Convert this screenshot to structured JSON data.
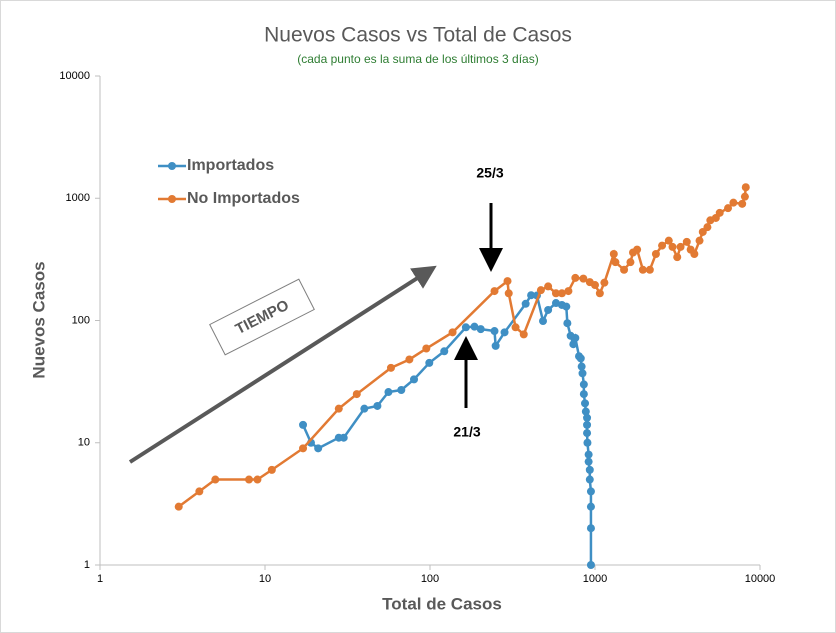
{
  "chart_data": {
    "type": "line",
    "title": "Nuevos Casos vs Total de Casos",
    "subtitle": "(cada punto es la suma de los últimos 3 días)",
    "xlabel": "Total de Casos",
    "ylabel": "Nuevos Casos",
    "xscale": "log",
    "yscale": "log",
    "xlim": [
      1,
      10000
    ],
    "ylim": [
      1,
      10000
    ],
    "xticks": [
      1,
      10,
      100,
      1000,
      10000
    ],
    "yticks": [
      1,
      10,
      100,
      1000,
      10000
    ],
    "legend": "upper left",
    "annotations": [
      "25/3",
      "21/3",
      "TIEMPO"
    ],
    "series": [
      {
        "name": "Importados",
        "color": "#3f8fc4",
        "x": [
          17,
          19,
          21,
          28,
          30,
          40,
          48,
          56,
          67,
          80,
          99,
          122,
          165,
          186,
          203,
          246,
          250,
          283,
          380,
          410,
          445,
          484,
          520,
          580,
          630,
          670,
          680,
          712,
          739,
          760,
          800,
          820,
          830,
          840,
          856,
          856,
          870,
          880,
          895,
          895,
          895,
          900,
          915,
          915,
          930,
          930,
          945,
          945,
          945,
          945
        ],
        "values": [
          14,
          10,
          9,
          11,
          11,
          19,
          20,
          26,
          27,
          33,
          45,
          56,
          88,
          89,
          85,
          82,
          62,
          80,
          137,
          161,
          160,
          99,
          122,
          139,
          134,
          130,
          95,
          75,
          64,
          72,
          51,
          49,
          42,
          37,
          30,
          25,
          21,
          18,
          16,
          14,
          12,
          10,
          8,
          7,
          6,
          5,
          4,
          3,
          2,
          1
        ]
      },
      {
        "name": "No Importados",
        "color": "#e27a33",
        "x": [
          3,
          4,
          5,
          8,
          9,
          11,
          17,
          28,
          36,
          58,
          75,
          95,
          137,
          246,
          295,
          300,
          330,
          370,
          470,
          520,
          580,
          630,
          690,
          760,
          850,
          930,
          1000,
          1070,
          1140,
          1300,
          1330,
          1500,
          1640,
          1700,
          1800,
          1950,
          2150,
          2340,
          2550,
          2800,
          2950,
          3150,
          3300,
          3600,
          3800,
          4000,
          4300,
          4500,
          4800,
          5000,
          5400,
          5700,
          6400,
          6900,
          7800,
          8100,
          8200
        ],
        "values": [
          3,
          4,
          5,
          5,
          5,
          6,
          9,
          19,
          25,
          41,
          48,
          59,
          80,
          174,
          210,
          167,
          88,
          77,
          177,
          190,
          167,
          167,
          174,
          223,
          220,
          206,
          195,
          167,
          204,
          350,
          300,
          260,
          300,
          360,
          380,
          260,
          260,
          350,
          410,
          450,
          400,
          330,
          400,
          440,
          380,
          350,
          450,
          530,
          580,
          660,
          690,
          760,
          830,
          920,
          900,
          1030,
          1230
        ]
      }
    ]
  }
}
